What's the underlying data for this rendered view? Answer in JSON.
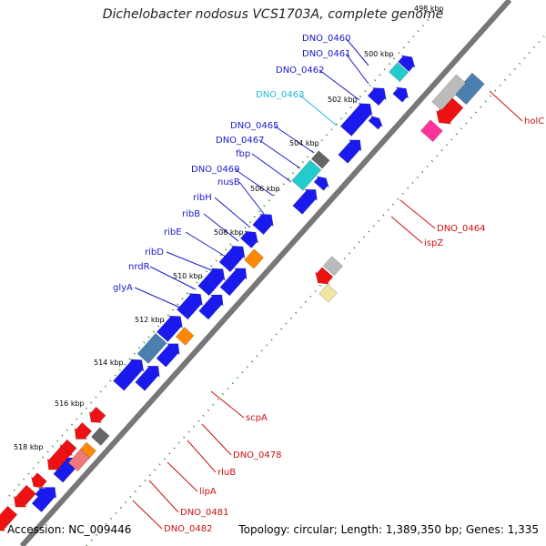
{
  "title": "Dichelobacter nodosus VCS1703A, complete genome",
  "footer": {
    "accession": "Accession: NC_009446",
    "summary": "Topology: circular; Length: 1,389,350 bp; Genes: 1,335"
  },
  "colors": {
    "forward_gene": "#1a1aee",
    "reverse_gene": "#ee1111",
    "cyan_gene": "#22cccc",
    "orange_gene": "#ff8800",
    "steel_gene": "#4a7fb0",
    "gray_gene": "#666666",
    "light_gray_gene": "#bbbbbb",
    "pale_yellow_gene": "#f0e6a0",
    "pink_gene": "#ee7777",
    "magenta_gene": "#ff3399",
    "backbone": "#777777",
    "tick": "#228822"
  },
  "ticks": [
    "498 kbp",
    "500 kbp",
    "502 kbp",
    "504 kbp",
    "506 kbp",
    "508 kbp",
    "510 kbp",
    "512 kbp",
    "514 kbp",
    "516 kbp",
    "518 kbp"
  ],
  "forward_labels": [
    "DNO_0460",
    "DNO_0461",
    "DNO_0462",
    "DNO_0463",
    "DNO_0465",
    "DNO_0467",
    "fbp",
    "DNO_0469",
    "nusB",
    "ribH",
    "ribB",
    "ribE",
    "ribD",
    "nrdR",
    "glyA"
  ],
  "reverse_labels": [
    "holC",
    "DNO_0464",
    "ispZ",
    "scpA",
    "DNO_0478",
    "rluB",
    "lipA",
    "DNO_0481",
    "DNO_0482"
  ]
}
